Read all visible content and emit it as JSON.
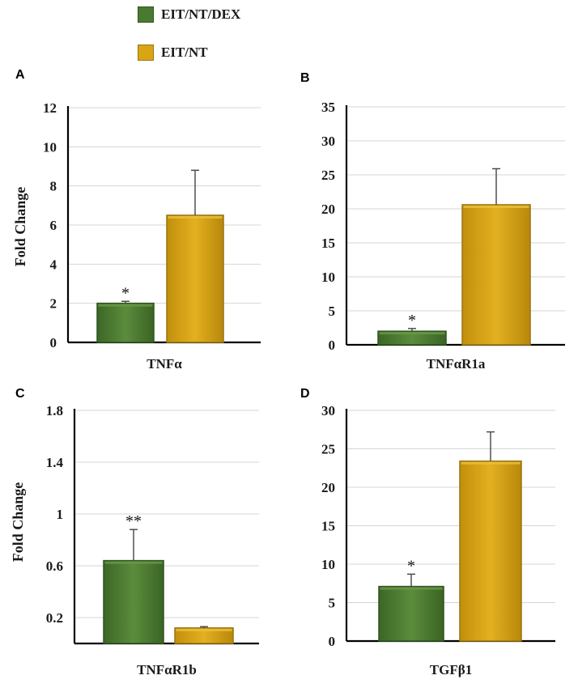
{
  "legend": [
    {
      "label": "EIT/NT/DEX",
      "color": "#4a7a30"
    },
    {
      "label": "EIT/NT",
      "color": "#d9a514"
    }
  ],
  "chart_data": [
    {
      "panel": "A",
      "type": "bar",
      "xlabel": "TNFα",
      "ylabel": "Fold Change",
      "ylim": [
        0,
        12
      ],
      "yticks": [
        0,
        2,
        4,
        6,
        8,
        10,
        12
      ],
      "series": [
        {
          "name": "EIT/NT/DEX",
          "value": 2.0,
          "error": 0.1,
          "sig": "*"
        },
        {
          "name": "EIT/NT",
          "value": 6.5,
          "error": 2.3,
          "sig": ""
        }
      ]
    },
    {
      "panel": "B",
      "type": "bar",
      "xlabel": "TNFαR1a",
      "ylabel": "",
      "ylim": [
        0,
        35
      ],
      "yticks": [
        0,
        5,
        10,
        15,
        20,
        25,
        30,
        35
      ],
      "series": [
        {
          "name": "EIT/NT/DEX",
          "value": 2.0,
          "error": 0.4,
          "sig": "*"
        },
        {
          "name": "EIT/NT",
          "value": 20.6,
          "error": 5.3,
          "sig": ""
        }
      ]
    },
    {
      "panel": "C",
      "type": "bar",
      "xlabel": "TNFαR1b",
      "ylabel": "Fold Change",
      "ylim": [
        0,
        1.8
      ],
      "yticks": [
        0.2,
        0.6,
        1,
        1.4,
        1.8
      ],
      "series": [
        {
          "name": "EIT/NT/DEX",
          "value": 0.64,
          "error": 0.24,
          "sig": "**"
        },
        {
          "name": "EIT/NT",
          "value": 0.12,
          "error": 0.01,
          "sig": ""
        }
      ]
    },
    {
      "panel": "D",
      "type": "bar",
      "xlabel": "TGFβ1",
      "ylabel": "",
      "ylim": [
        0,
        30
      ],
      "yticks": [
        0,
        5,
        10,
        15,
        20,
        25,
        30
      ],
      "series": [
        {
          "name": "EIT/NT/DEX",
          "value": 7.1,
          "error": 1.6,
          "sig": "*"
        },
        {
          "name": "EIT/NT",
          "value": 23.4,
          "error": 3.8,
          "sig": ""
        }
      ]
    }
  ]
}
